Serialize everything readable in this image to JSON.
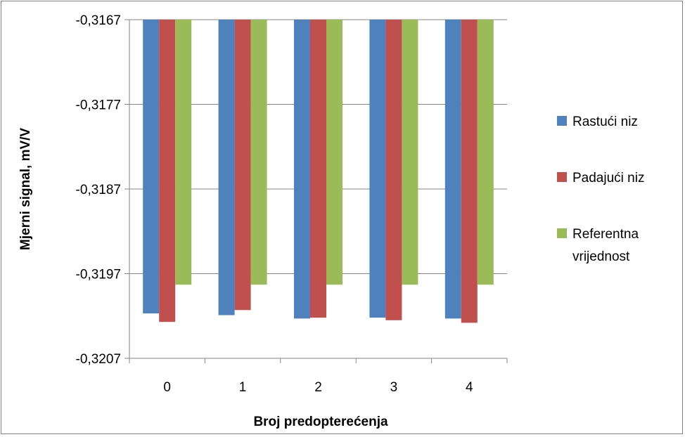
{
  "chart_data": {
    "type": "bar",
    "title": "",
    "xlabel": "Broj predopterećenja",
    "ylabel": "Mjerni signal, mV/V",
    "ylim": [
      -0.3207,
      -0.3167
    ],
    "yticks": [
      -0.3167,
      -0.3177,
      -0.3187,
      -0.3197,
      -0.3207
    ],
    "ytick_labels": [
      "-0,3167",
      "-0,3177",
      "-0,3187",
      "-0,3197",
      "-0,3207"
    ],
    "categories": [
      "0",
      "1",
      "2",
      "3",
      "4"
    ],
    "grid": "horizontal",
    "legend_position": "right",
    "series": [
      {
        "name": "Rastući niz",
        "color": "#4F81BD",
        "values": [
          -0.32017,
          -0.32019,
          -0.32023,
          -0.32022,
          -0.32023
        ]
      },
      {
        "name": "Padajući niz",
        "color": "#C0504D",
        "values": [
          -0.32027,
          -0.32013,
          -0.32022,
          -0.32025,
          -0.32028
        ]
      },
      {
        "name": "Referentna vrijednost",
        "color": "#9BBB59",
        "values": [
          -0.31983,
          -0.31983,
          -0.31983,
          -0.31983,
          -0.31983
        ]
      }
    ]
  }
}
